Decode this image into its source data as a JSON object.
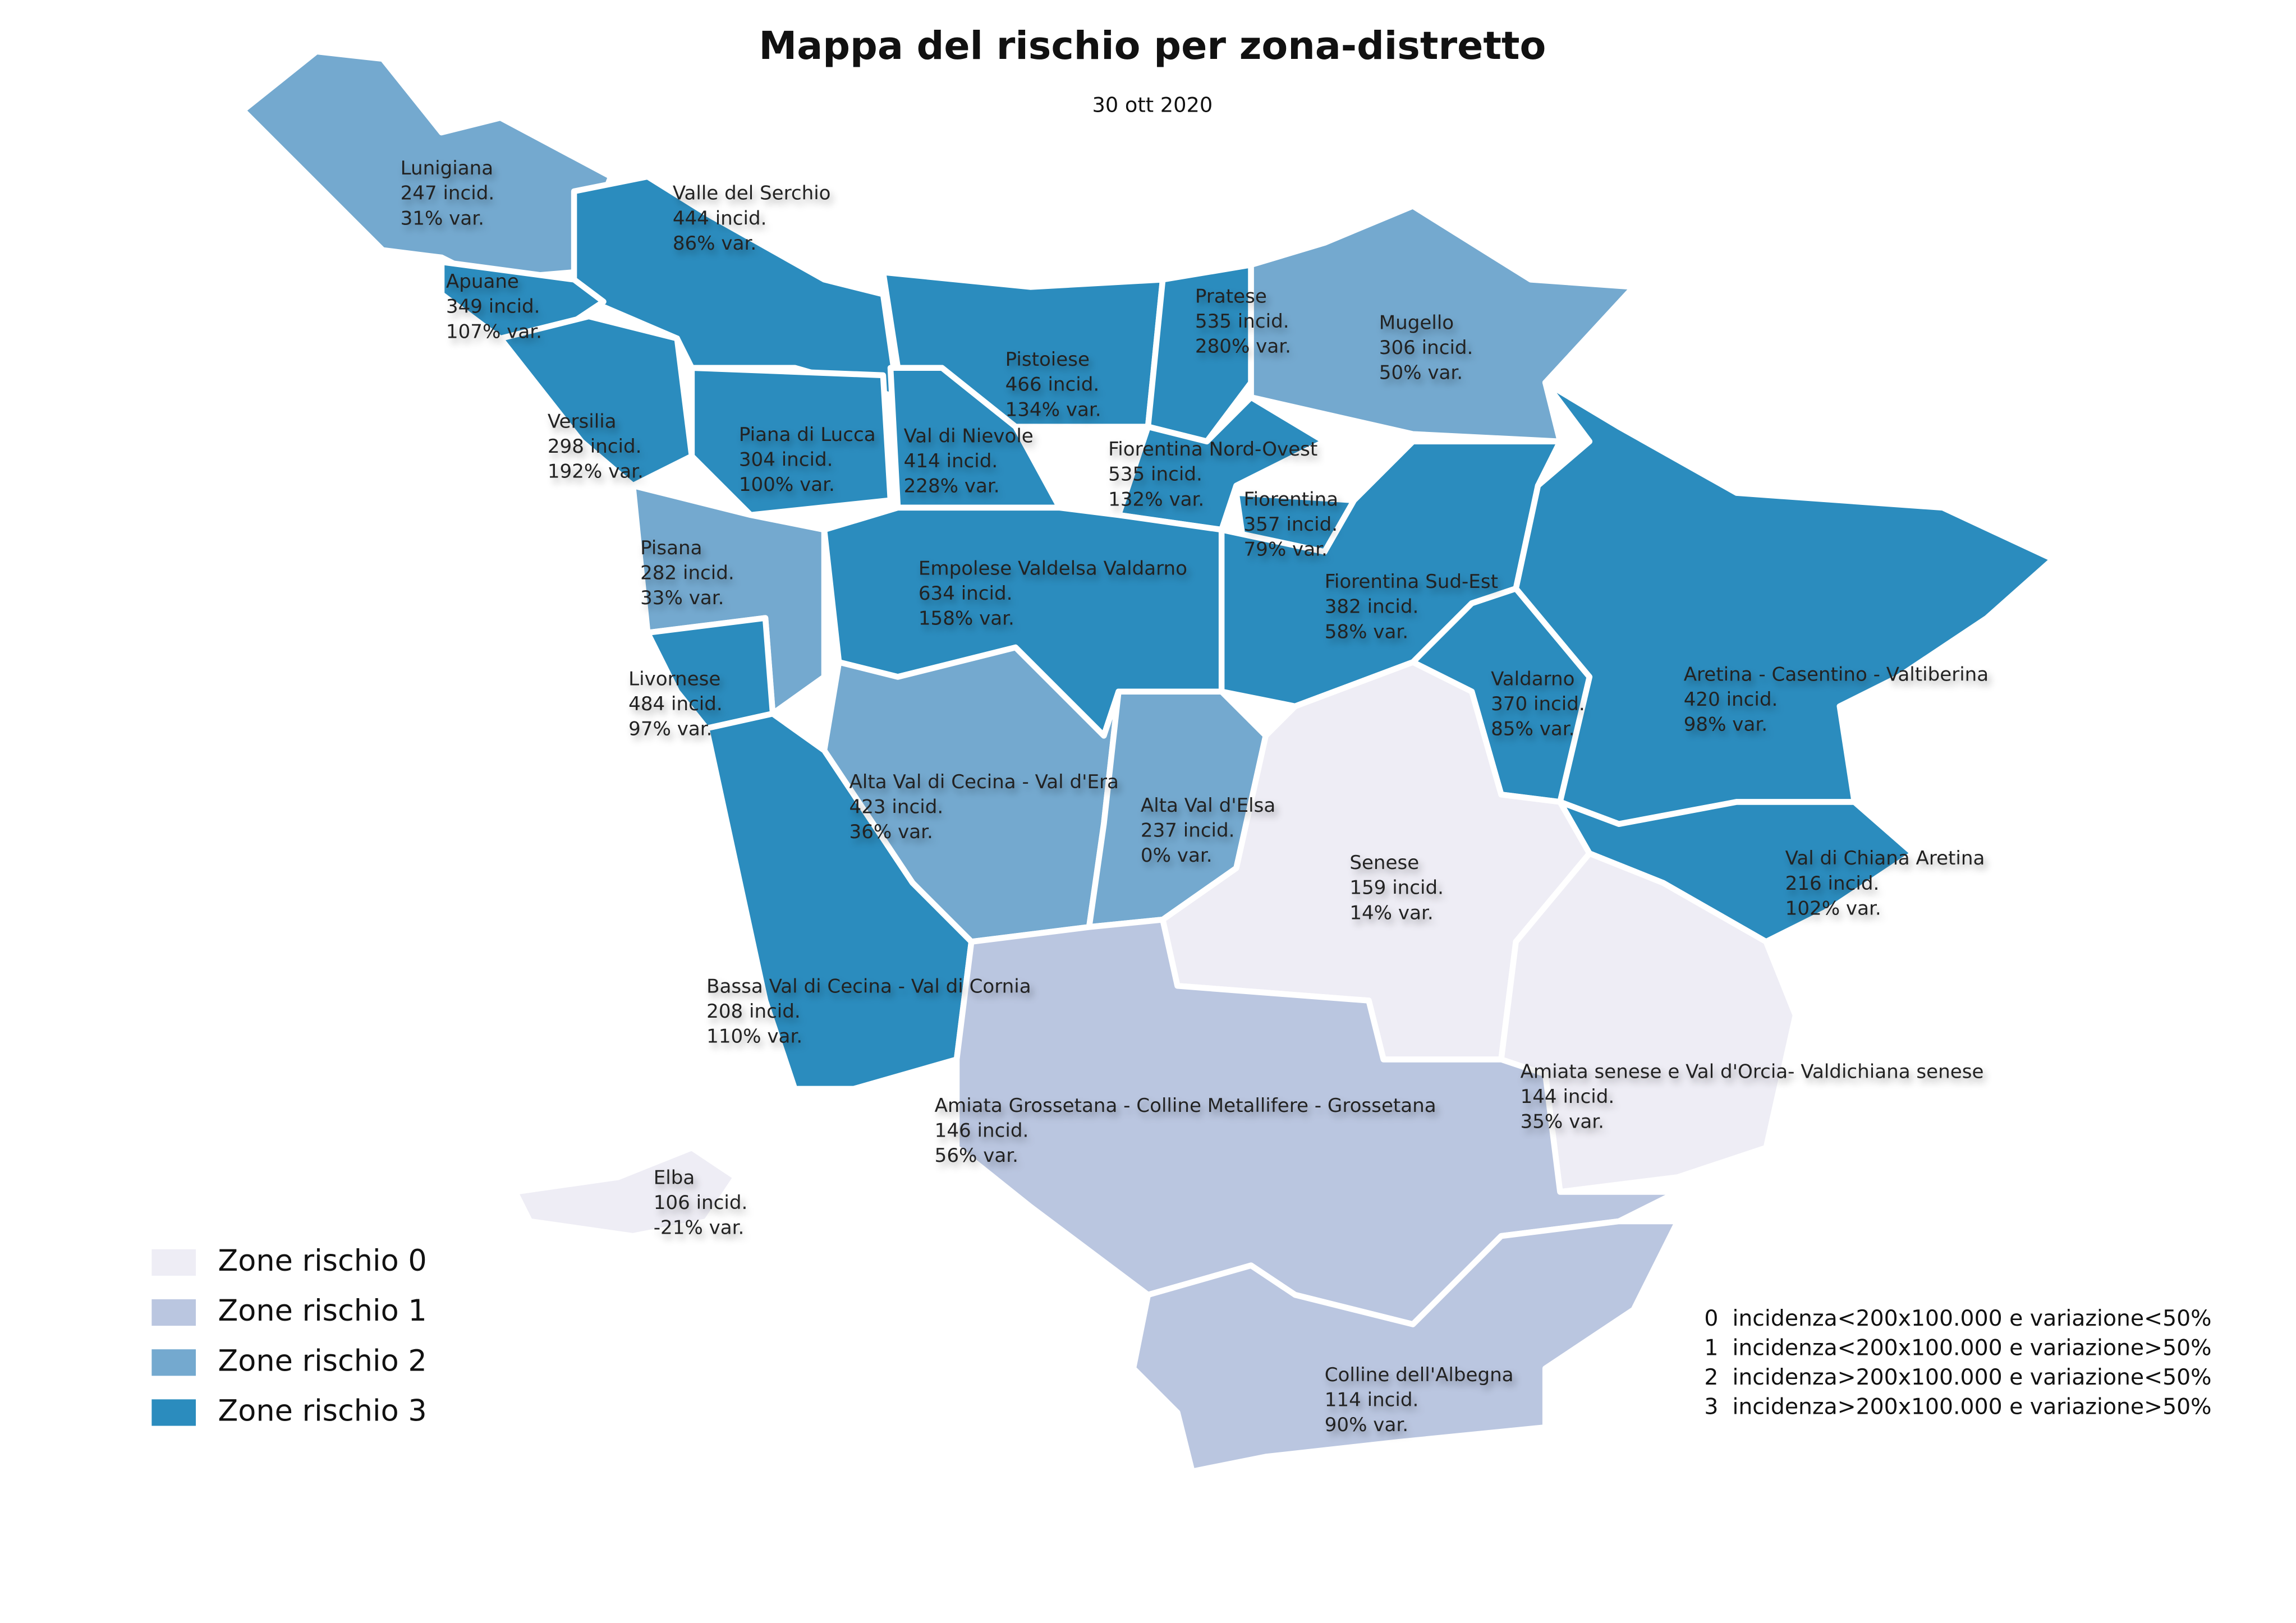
{
  "header": {
    "title": "Mappa del rischio per zona-distretto",
    "subtitle": "30 ott 2020"
  },
  "legend": [
    {
      "label": "Zone rischio 0",
      "color": "#eeedf5"
    },
    {
      "label": "Zone rischio 1",
      "color": "#bac6e0"
    },
    {
      "label": "Zone rischio 2",
      "color": "#74a9cf"
    },
    {
      "label": "Zone rischio 3",
      "color": "#2b8cbe"
    }
  ],
  "notes": [
    "0  incidenza<200x100.000 e variazione<50%",
    "1  incidenza<200x100.000 e variazione>50%",
    "2  incidenza>200x100.000 e variazione<50%",
    "3  incidenza>200x100.000 e variazione>50%"
  ],
  "zones": [
    {
      "name": "Lunigiana",
      "incidence": "247 incid.",
      "variation": "31% var.",
      "risk": 2
    },
    {
      "name": "Valle del Serchio",
      "incidence": "444 incid.",
      "variation": "86% var.",
      "risk": 3
    },
    {
      "name": "Apuane",
      "incidence": "349 incid.",
      "variation": "107% var.",
      "risk": 3
    },
    {
      "name": "Versilia",
      "incidence": "298 incid.",
      "variation": "192% var.",
      "risk": 3
    },
    {
      "name": "Piana di Lucca",
      "incidence": "304 incid.",
      "variation": "100% var.",
      "risk": 3
    },
    {
      "name": "Pistoiese",
      "incidence": "466 incid.",
      "variation": "134% var.",
      "risk": 3
    },
    {
      "name": "Val di Nievole",
      "incidence": "414 incid.",
      "variation": "228% var.",
      "risk": 3
    },
    {
      "name": "Pratese",
      "incidence": "535 incid.",
      "variation": "280% var.",
      "risk": 3
    },
    {
      "name": "Mugello",
      "incidence": "306 incid.",
      "variation": "50% var.",
      "risk": 2
    },
    {
      "name": "Fiorentina Nord-Ovest",
      "incidence": "535 incid.",
      "variation": "132% var.",
      "risk": 3
    },
    {
      "name": "Fiorentina",
      "incidence": "357 incid.",
      "variation": "79% var.",
      "risk": 3
    },
    {
      "name": "Pisana",
      "incidence": "282 incid.",
      "variation": "33% var.",
      "risk": 2
    },
    {
      "name": "Empolese Valdelsa Valdarno",
      "incidence": "634 incid.",
      "variation": "158% var.",
      "risk": 3
    },
    {
      "name": "Fiorentina Sud-Est",
      "incidence": "382 incid.",
      "variation": "58% var.",
      "risk": 3
    },
    {
      "name": "Livornese",
      "incidence": "484 incid.",
      "variation": "97% var.",
      "risk": 3
    },
    {
      "name": "Valdarno",
      "incidence": "370 incid.",
      "variation": "85% var.",
      "risk": 3
    },
    {
      "name": "Aretina - Casentino - Valtiberina",
      "incidence": "420 incid.",
      "variation": "98% var.",
      "risk": 3
    },
    {
      "name": "Alta Val di Cecina - Val d'Era",
      "incidence": "423 incid.",
      "variation": "36% var.",
      "risk": 2
    },
    {
      "name": "Alta Val d'Elsa",
      "incidence": "237 incid.",
      "variation": "0% var.",
      "risk": 2
    },
    {
      "name": "Senese",
      "incidence": "159 incid.",
      "variation": "14% var.",
      "risk": 0
    },
    {
      "name": "Val di Chiana Aretina",
      "incidence": "216 incid.",
      "variation": "102% var.",
      "risk": 3
    },
    {
      "name": "Bassa Val di Cecina - Val di Cornia",
      "incidence": "208 incid.",
      "variation": "110% var.",
      "risk": 3
    },
    {
      "name": "Amiata senese e Val d'Orcia- Valdichiana senese",
      "incidence": "144 incid.",
      "variation": "35% var.",
      "risk": 0
    },
    {
      "name": "Amiata Grossetana - Colline Metallifere - Grossetana",
      "incidence": "146 incid.",
      "variation": "56% var.",
      "risk": 1
    },
    {
      "name": "Elba",
      "incidence": "106 incid.",
      "variation": "-21% var.",
      "risk": 0
    },
    {
      "name": "Colline dell'Albegna",
      "incidence": "114 incid.",
      "variation": "90% var.",
      "risk": 1
    }
  ]
}
